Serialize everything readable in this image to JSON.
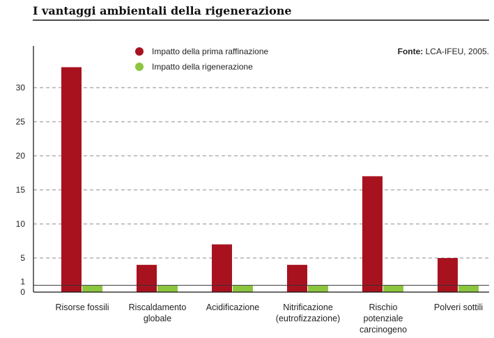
{
  "chart_data": {
    "type": "bar",
    "title": "I vantaggi ambientali della rigenerazione",
    "source_label": "Fonte:",
    "source_value": "LCA-IFEU, 2005.",
    "categories": [
      [
        "Risorse fossili"
      ],
      [
        "Riscaldamento",
        "globale"
      ],
      [
        "Acidificazione"
      ],
      [
        "Nitrificazione",
        "(eutrofizzazione)"
      ],
      [
        "Rischio",
        "potenziale",
        "carcinogeno"
      ],
      [
        "Polveri sottili"
      ]
    ],
    "series": [
      {
        "name": "Impatto della prima raffinazione",
        "color": "#a8121f",
        "values": [
          33,
          4,
          7,
          4,
          17,
          5
        ]
      },
      {
        "name": "Impatto della rigenerazione",
        "color": "#8cc63f",
        "values": [
          1,
          1,
          1,
          1,
          1,
          1
        ]
      }
    ],
    "y_ticks": [
      0,
      1,
      5,
      10,
      15,
      20,
      25,
      30
    ],
    "ylim": [
      0,
      35
    ],
    "grid": "dashed horizontal",
    "legend_position": "top-center"
  }
}
